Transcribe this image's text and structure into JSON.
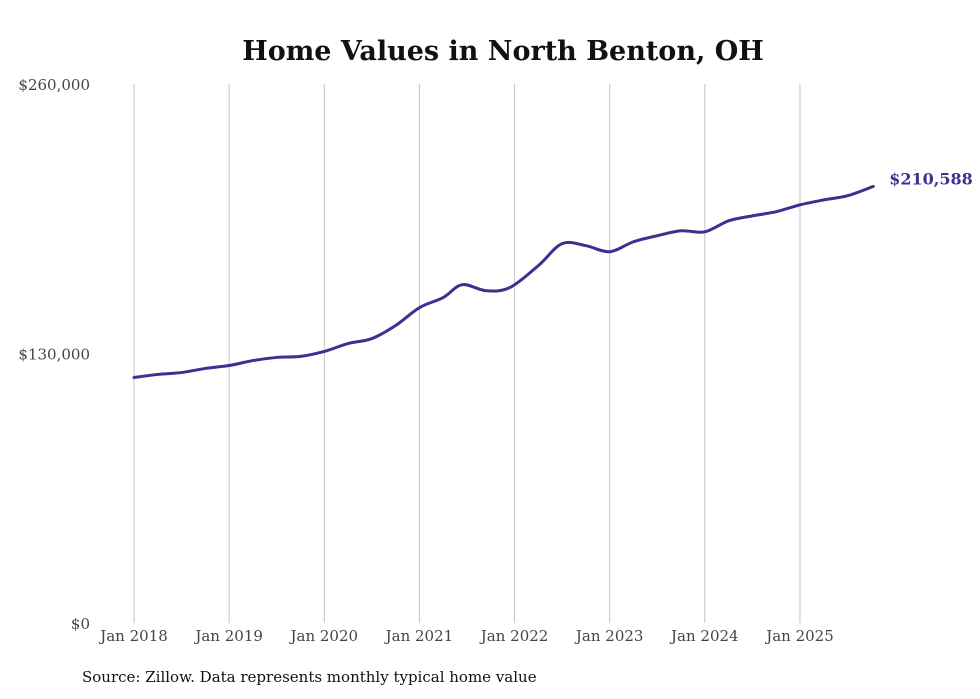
{
  "chart_data": {
    "type": "line",
    "title": "Home Values in North Benton, OH",
    "xlabel": "",
    "ylabel": "",
    "ylim": [
      0,
      260000
    ],
    "yticks": [
      0,
      130000,
      260000
    ],
    "ytick_labels": [
      "$0",
      "$130,000",
      "$260,000"
    ],
    "xticks": [
      2018,
      2019,
      2020,
      2021,
      2022,
      2023,
      2024,
      2025
    ],
    "xtick_labels": [
      "Jan 2018",
      "Jan 2019",
      "Jan 2020",
      "Jan 2021",
      "Jan 2022",
      "Jan 2023",
      "Jan 2024",
      "Jan 2025"
    ],
    "xlim": [
      2018,
      2025.77
    ],
    "grid": "vertical",
    "series": [
      {
        "name": "Typical home value",
        "color": "#3b3191",
        "x": [
          2018.0,
          2018.25,
          2018.5,
          2018.75,
          2019.0,
          2019.25,
          2019.5,
          2019.75,
          2020.0,
          2020.25,
          2020.5,
          2020.75,
          2021.0,
          2021.25,
          2021.45,
          2021.7,
          2021.95,
          2022.25,
          2022.5,
          2022.75,
          2023.0,
          2023.25,
          2023.5,
          2023.75,
          2024.0,
          2024.25,
          2024.5,
          2024.75,
          2025.0,
          2025.25,
          2025.5,
          2025.77
        ],
        "values": [
          118400,
          119900,
          120800,
          122800,
          124200,
          126600,
          128100,
          128600,
          131000,
          134800,
          137200,
          143500,
          152100,
          157000,
          163200,
          160300,
          161800,
          172400,
          183000,
          182000,
          179100,
          183900,
          186800,
          189200,
          188700,
          194000,
          196400,
          198400,
          201700,
          204100,
          206100,
          210588
        ]
      }
    ],
    "end_label": "$210,588",
    "source": "Source: Zillow. Data represents monthly typical home value"
  }
}
